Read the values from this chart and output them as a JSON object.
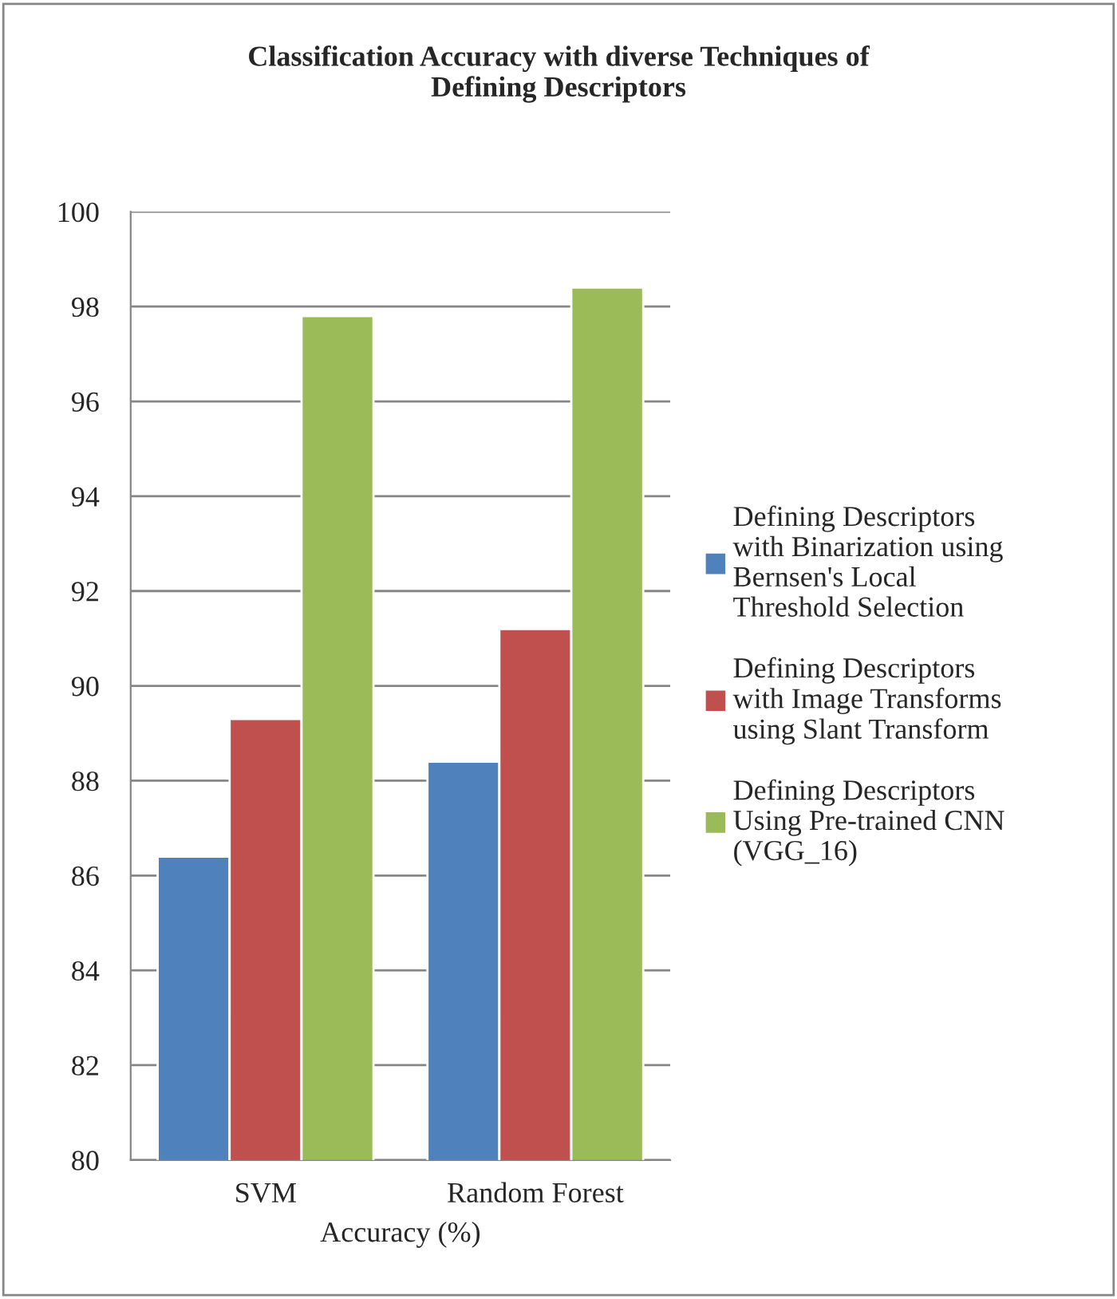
{
  "chart_data": {
    "type": "bar",
    "title": "Classification Accuracy with diverse Techniques of\nDefining Descriptors",
    "xlabel": "Accuracy (%)",
    "categories": [
      "SVM",
      "Random Forest"
    ],
    "series": [
      {
        "name": "Defining Descriptors\nwith Binarization using\nBernsen's Local\nThreshold Selection",
        "color": "#4f81bd",
        "values": [
          86.4,
          88.4
        ]
      },
      {
        "name": "Defining Descriptors\nwith Image Transforms\nusing Slant Transform",
        "color": "#c0504d",
        "values": [
          89.3,
          91.2
        ]
      },
      {
        "name": "Defining Descriptors\nUsing Pre-trained CNN\n(VGG_16)",
        "color": "#9bbb59",
        "values": [
          97.8,
          98.4
        ]
      }
    ],
    "ylim": [
      80,
      100
    ],
    "yticks": [
      80,
      82,
      84,
      86,
      88,
      90,
      92,
      94,
      96,
      98,
      100
    ],
    "grid": "y",
    "legend": "right"
  }
}
